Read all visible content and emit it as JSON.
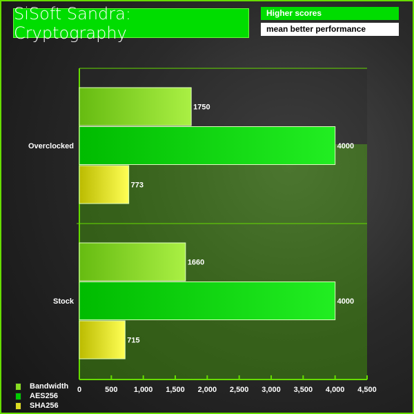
{
  "header": {
    "title": "SiSoft Sandra: Cryptography",
    "note_line1": "Higher scores",
    "note_line2": "mean better performance"
  },
  "chart_data": {
    "type": "bar",
    "orientation": "horizontal",
    "title": "SiSoft Sandra: Cryptography",
    "categories": [
      "Overclocked",
      "Stock"
    ],
    "series": [
      {
        "name": "Bandwidth",
        "values": [
          1750,
          1660
        ],
        "color": "#88dd22"
      },
      {
        "name": "AES256",
        "values": [
          4000,
          4000
        ],
        "color": "#00cc00"
      },
      {
        "name": "SHA256",
        "values": [
          773,
          715
        ],
        "color": "#dddd22"
      }
    ],
    "xlim": [
      0,
      4500
    ],
    "xticks": [
      "0",
      "500",
      "1,000",
      "1,500",
      "2,000",
      "2,500",
      "3,000",
      "3,500",
      "4,000",
      "4,500"
    ],
    "xtick_values": [
      0,
      500,
      1000,
      1500,
      2000,
      2500,
      3000,
      3500,
      4000,
      4500
    ],
    "legend_position": "bottom-left",
    "grid": false
  }
}
